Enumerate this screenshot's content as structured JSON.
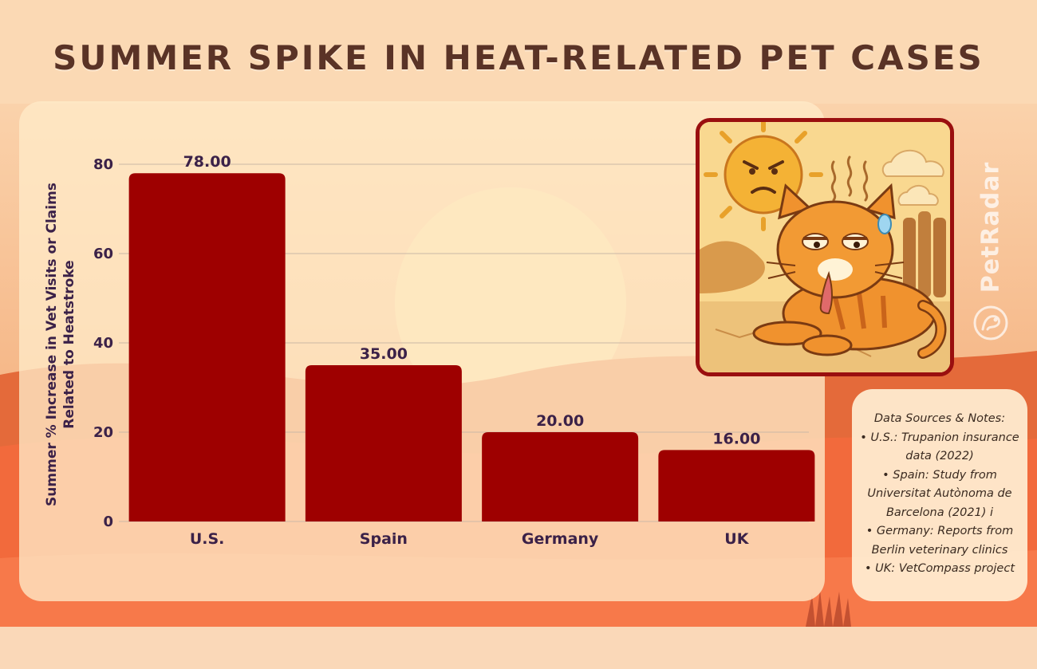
{
  "title": "SUMMER SPIKE IN HEAT-RELATED PET CASES",
  "brand": "PetRadar",
  "colors": {
    "bar": "#9e0000",
    "title": "#5a3326",
    "axis_text": "#3b2148",
    "grid": "#cbb8a6"
  },
  "chart_data": {
    "type": "bar",
    "categories": [
      "U.S.",
      "Spain",
      "Germany",
      "UK"
    ],
    "values": [
      78.0,
      35.0,
      20.0,
      16.0
    ],
    "data_labels": [
      "78.00",
      "35.00",
      "20.00",
      "16.00"
    ],
    "ylabel": "Summer % Increase in Vet Visits or Claims Related to Heatstroke",
    "xlabel": "",
    "ylim": [
      0,
      80
    ],
    "yticks": [
      0,
      20,
      40,
      60,
      80
    ],
    "grid": true
  },
  "notes": {
    "lines": [
      "Data Sources & Notes:",
      "• U.S.: Trupanion insurance",
      "data (2022)",
      "• Spain: Study from",
      "Universitat Autònoma de",
      "Barcelona (2021) i",
      "• Germany: Reports from",
      "Berlin veterinary clinics",
      "• UK: VetCompass project"
    ]
  },
  "illustration_icon": "overheated-cat-illustration",
  "brand_icon": "petradar-logo-icon"
}
